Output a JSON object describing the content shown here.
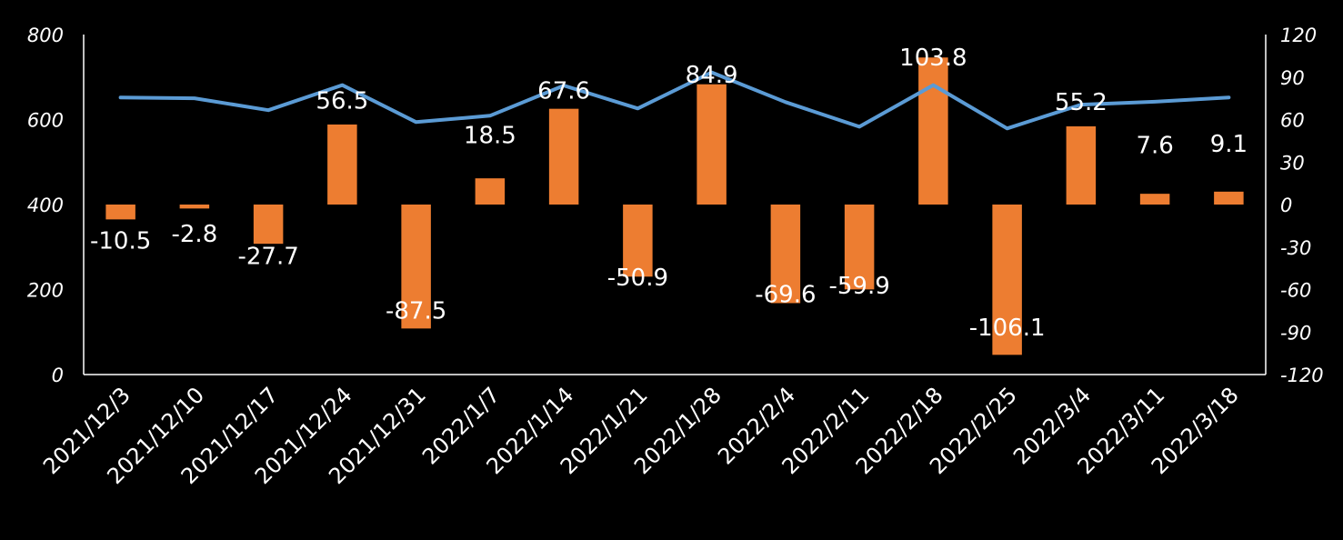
{
  "chart_data": {
    "type": "bar",
    "categories": [
      "2021/12/3",
      "2021/12/10",
      "2021/12/17",
      "2021/12/24",
      "2021/12/31",
      "2022/1/7",
      "2022/1/14",
      "2022/1/21",
      "2022/1/28",
      "2022/2/4",
      "2022/2/11",
      "2022/2/18",
      "2022/2/25",
      "2022/3/4",
      "2022/3/11",
      "2022/3/18"
    ],
    "series": [
      {
        "type": "bar",
        "axis": "right",
        "color": "#ED7D31",
        "values": [
          -10.5,
          -2.8,
          -27.7,
          56.5,
          -87.5,
          18.5,
          67.6,
          -50.9,
          84.9,
          -69.6,
          -59.9,
          103.8,
          -106.1,
          55.2,
          7.6,
          9.1
        ],
        "labels": [
          "-10.5",
          "-2.8",
          "-27.7",
          "56.5",
          "-87.5",
          "18.5",
          "67.6",
          "-50.9",
          "84.9",
          "-69.6",
          "-59.9",
          "103.8",
          "-106.1",
          "55.2",
          "7.6",
          "9.1"
        ]
      },
      {
        "type": "line",
        "axis": "left",
        "color": "#5B9BD5",
        "values": [
          652,
          650,
          622,
          681,
          594,
          609,
          680,
          626,
          711,
          641,
          583,
          681,
          579,
          635,
          642,
          652
        ]
      }
    ],
    "left_axis": {
      "ylim": [
        0,
        800
      ],
      "ticks": [
        "800",
        "600",
        "400",
        "200",
        "0"
      ],
      "tick_values": [
        800,
        600,
        400,
        200,
        0
      ]
    },
    "right_axis": {
      "ylim": [
        -120,
        120
      ],
      "ticks": [
        "120",
        "90",
        "60",
        "30",
        "0",
        "-30",
        "-60",
        "-90",
        "-120"
      ],
      "tick_values": [
        120,
        90,
        60,
        30,
        0,
        -30,
        -60,
        -90,
        -120
      ]
    },
    "title": "",
    "xlabel": "",
    "ylabel": "",
    "grid": false,
    "legend": "none",
    "background": "#000000"
  }
}
